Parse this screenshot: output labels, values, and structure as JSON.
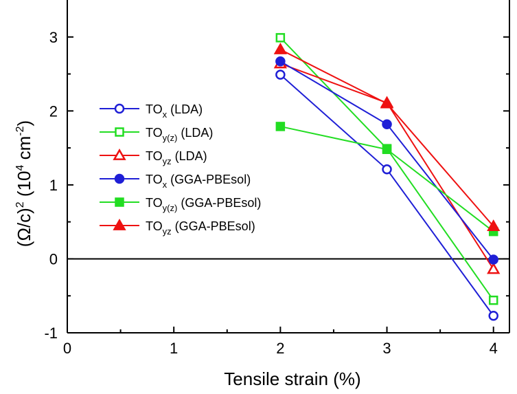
{
  "chart_data": {
    "type": "line",
    "title": "",
    "xlabel": "Tensile strain (%)",
    "ylabel": "(Ω/c)² (10⁴ cm⁻²)",
    "ylabel_parts": {
      "left": "(Ω/c)",
      "sup1": "2",
      "mid": " (10",
      "sup2": "4",
      "unit": " cm",
      "sup3": "-2",
      "right": ")"
    },
    "xlim": [
      0,
      4.15
    ],
    "ylim": [
      -1,
      3.5
    ],
    "xticks": [
      0,
      1,
      2,
      3,
      4
    ],
    "yticks": [
      -1,
      0,
      1,
      2,
      3
    ],
    "xtick_labels": [
      "0",
      "1",
      "2",
      "3",
      "4"
    ],
    "ytick_labels": [
      "-1",
      "0",
      "1",
      "2",
      "3"
    ],
    "zero_line": true,
    "grid": false,
    "legend_position": "left",
    "series": [
      {
        "name": "TOx (LDA)",
        "label_main": "TO",
        "label_sub": "x",
        "label_rest": " (LDA)",
        "color": "#1f1fd6",
        "marker": "circle",
        "filled": false,
        "x": [
          2,
          3,
          4
        ],
        "y": [
          2.49,
          1.21,
          -0.77
        ]
      },
      {
        "name": "TOy(z) (LDA)",
        "label_main": "TO",
        "label_sub": "y(z)",
        "label_rest": " (LDA)",
        "color": "#22dd22",
        "marker": "square",
        "filled": false,
        "x": [
          2,
          3,
          4
        ],
        "y": [
          2.99,
          1.49,
          -0.56
        ]
      },
      {
        "name": "TOyz (LDA)",
        "label_main": "TO",
        "label_sub": "yz",
        "label_rest": " (LDA)",
        "color": "#ee1111",
        "marker": "triangle",
        "filled": false,
        "x": [
          2,
          3,
          4
        ],
        "y": [
          2.64,
          2.11,
          -0.14
        ]
      },
      {
        "name": "TOx (GGA-PBEsol)",
        "label_main": "TO",
        "label_sub": "x",
        "label_rest": " (GGA-PBEsol)",
        "color": "#1f1fd6",
        "marker": "circle",
        "filled": true,
        "x": [
          2,
          3,
          4
        ],
        "y": [
          2.67,
          1.82,
          -0.01
        ]
      },
      {
        "name": "TOy(z) (GGA-PBEsol)",
        "label_main": "TO",
        "label_sub": "y(z)",
        "label_rest": " (GGA-PBEsol)",
        "color": "#22dd22",
        "marker": "square",
        "filled": true,
        "x": [
          2,
          3,
          4
        ],
        "y": [
          1.79,
          1.48,
          0.37
        ]
      },
      {
        "name": "TOyz (GGA-PBEsol)",
        "label_main": "TO",
        "label_sub": "yz",
        "label_rest": " (GGA-PBEsol)",
        "color": "#ee1111",
        "marker": "triangle",
        "filled": true,
        "x": [
          2,
          3,
          4
        ],
        "y": [
          2.83,
          2.1,
          0.44
        ]
      }
    ]
  }
}
